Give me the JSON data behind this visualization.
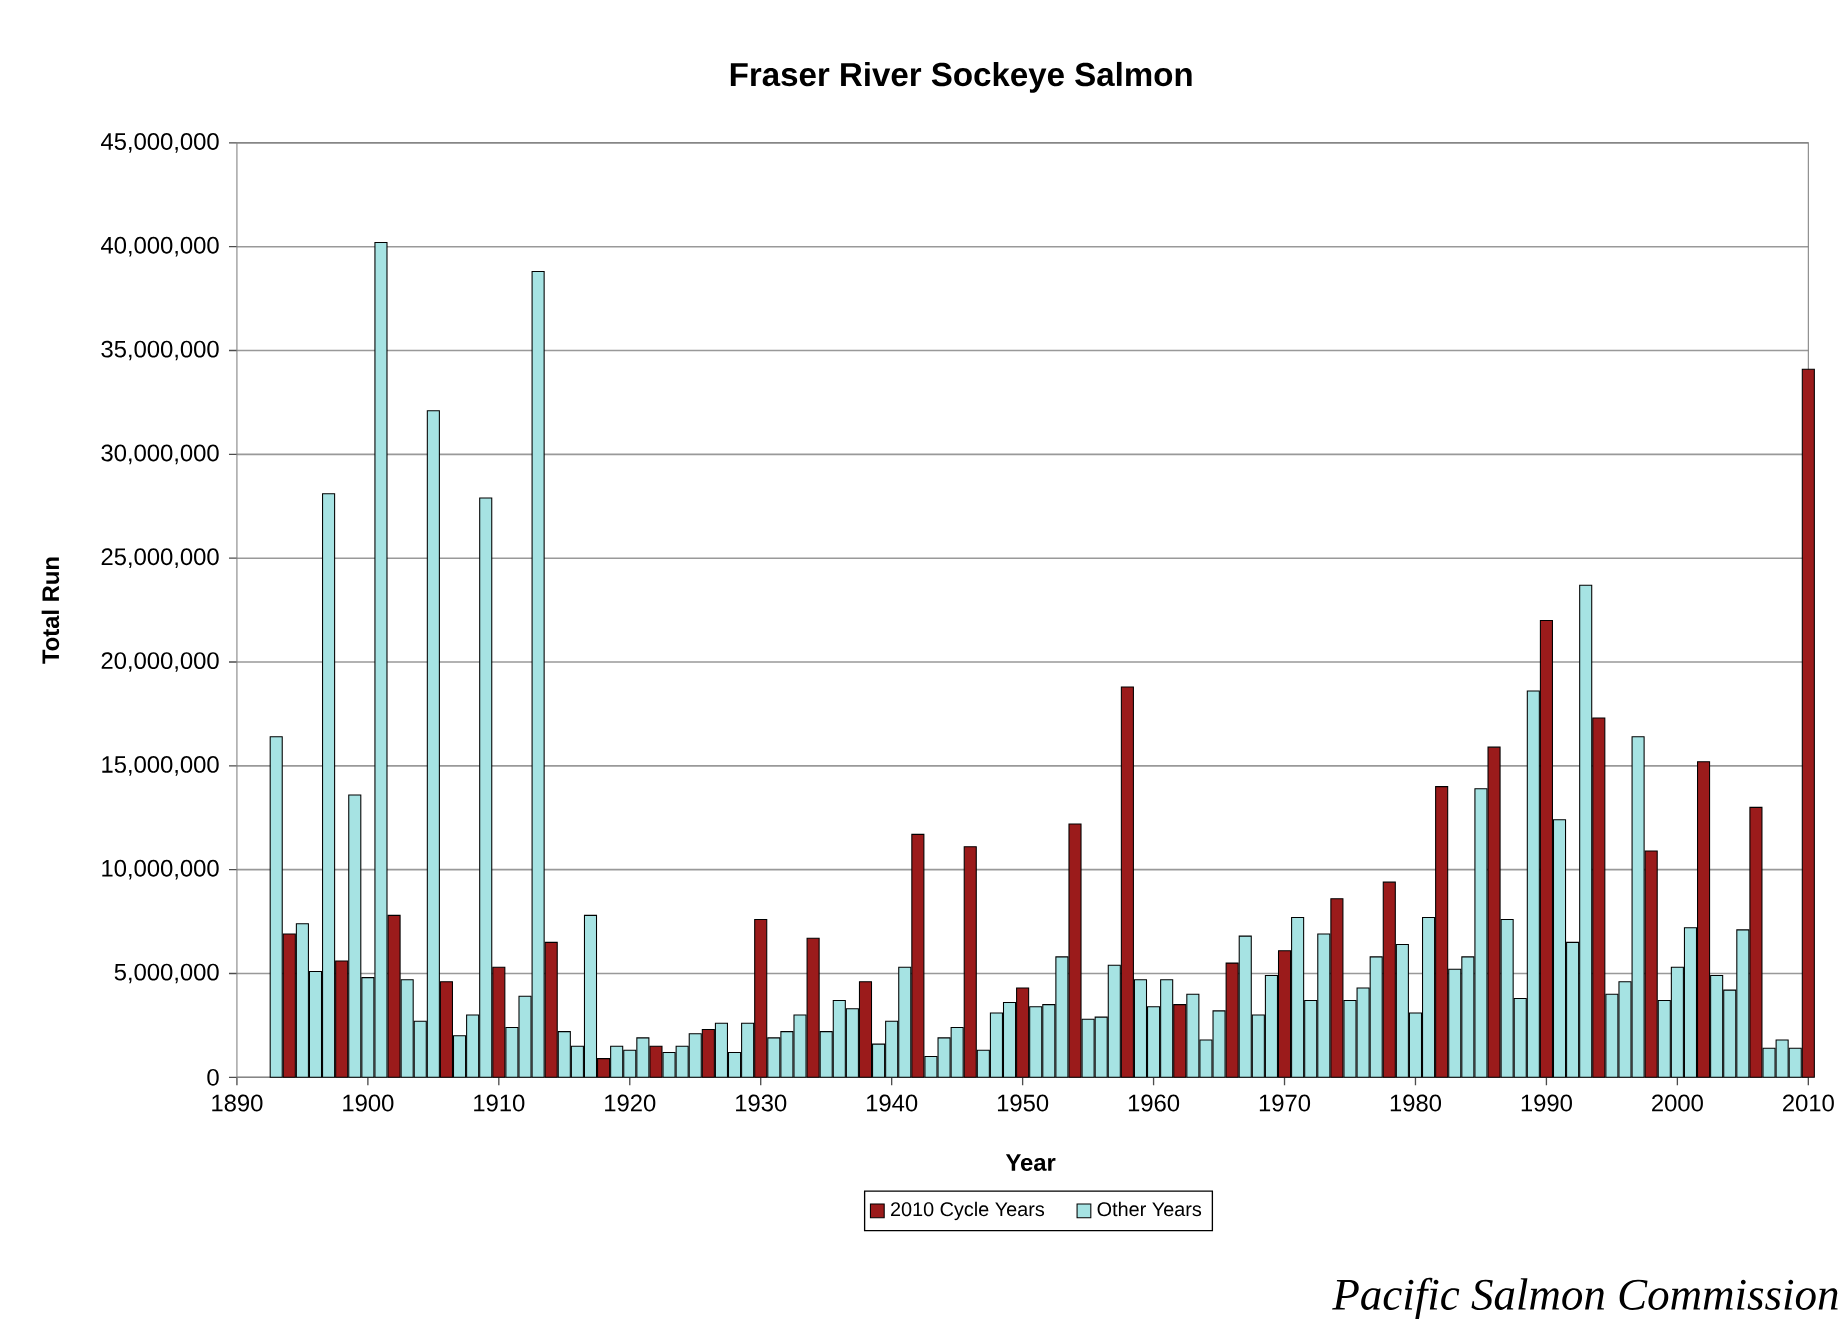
{
  "chart_data": {
    "type": "bar",
    "title": "Fraser River Sockeye Salmon",
    "xlabel": "Year",
    "ylabel": "Total Run",
    "xlim": [
      1890,
      2010
    ],
    "xticks": [
      1890,
      1900,
      1910,
      1920,
      1930,
      1940,
      1950,
      1960,
      1970,
      1980,
      1990,
      2000,
      2010
    ],
    "ylim": [
      0,
      45000000
    ],
    "yticks": [
      0,
      {
        "value": 5000000,
        "label": "5,000,000"
      },
      {
        "value": 10000000,
        "label": "10,000,000"
      },
      {
        "value": 15000000,
        "label": "15,000,000"
      },
      {
        "value": 20000000,
        "label": "20,000,000"
      },
      {
        "value": 25000000,
        "label": "25,000,000"
      },
      {
        "value": 30000000,
        "label": "30,000,000"
      },
      {
        "value": 35000000,
        "label": "35,000,000"
      },
      {
        "value": 40000000,
        "label": "40,000,000"
      },
      {
        "value": 45000000,
        "label": "45,000,000"
      }
    ],
    "grid": "y",
    "legend": "bottom",
    "series": [
      {
        "name": "2010 Cycle Years",
        "color": "#9b1b1b",
        "x": [
          1894,
          1898,
          1902,
          1906,
          1910,
          1914,
          1918,
          1922,
          1926,
          1930,
          1934,
          1938,
          1942,
          1946,
          1950,
          1954,
          1958,
          1962,
          1966,
          1970,
          1974,
          1978,
          1982,
          1986,
          1990,
          1994,
          1998,
          2002,
          2006,
          2010
        ],
        "values": [
          6900000,
          5600000,
          7800000,
          4600000,
          5300000,
          6500000,
          900000,
          1500000,
          2300000,
          7600000,
          6700000,
          4600000,
          11700000,
          11100000,
          4300000,
          12200000,
          18800000,
          3500000,
          5500000,
          6100000,
          8600000,
          9400000,
          14000000,
          15900000,
          22000000,
          17300000,
          10900000,
          15200000,
          13000000,
          34100000
        ]
      },
      {
        "name": "Other Years",
        "color": "#a6e3e3",
        "x": [
          1893,
          1895,
          1896,
          1897,
          1899,
          1900,
          1901,
          1903,
          1904,
          1905,
          1907,
          1908,
          1909,
          1911,
          1912,
          1913,
          1915,
          1916,
          1917,
          1919,
          1920,
          1921,
          1923,
          1924,
          1925,
          1927,
          1928,
          1929,
          1931,
          1932,
          1933,
          1935,
          1936,
          1937,
          1939,
          1940,
          1941,
          1943,
          1944,
          1945,
          1947,
          1948,
          1949,
          1951,
          1952,
          1953,
          1955,
          1956,
          1957,
          1959,
          1960,
          1961,
          1963,
          1964,
          1965,
          1967,
          1968,
          1969,
          1971,
          1972,
          1973,
          1975,
          1976,
          1977,
          1979,
          1980,
          1981,
          1983,
          1984,
          1985,
          1987,
          1988,
          1989,
          1991,
          1992,
          1993,
          1995,
          1996,
          1997,
          1999,
          2000,
          2001,
          2003,
          2004,
          2005,
          2007,
          2008,
          2009
        ],
        "values": [
          16400000,
          7400000,
          5100000,
          28100000,
          13600000,
          4800000,
          40200000,
          4700000,
          2700000,
          32100000,
          2000000,
          3000000,
          27900000,
          2400000,
          3900000,
          38800000,
          2200000,
          1500000,
          7800000,
          1500000,
          1300000,
          1900000,
          1200000,
          1500000,
          2100000,
          2600000,
          1200000,
          2600000,
          1900000,
          2200000,
          3000000,
          2200000,
          3700000,
          3300000,
          1600000,
          2700000,
          5300000,
          1000000,
          1900000,
          2400000,
          1300000,
          3100000,
          3600000,
          3400000,
          3500000,
          5800000,
          2800000,
          2900000,
          5400000,
          4700000,
          3400000,
          4700000,
          4000000,
          1800000,
          3200000,
          6800000,
          3000000,
          4900000,
          7700000,
          3700000,
          6900000,
          3700000,
          4300000,
          5800000,
          6400000,
          3100000,
          7700000,
          5200000,
          5800000,
          13900000,
          7600000,
          3800000,
          18600000,
          12400000,
          6500000,
          23700000,
          4000000,
          4600000,
          16400000,
          3700000,
          5300000,
          7200000,
          4900000,
          4200000,
          7100000,
          1400000,
          1800000,
          1400000
        ]
      }
    ],
    "annotations": [
      "Pacific Salmon Commission"
    ]
  }
}
